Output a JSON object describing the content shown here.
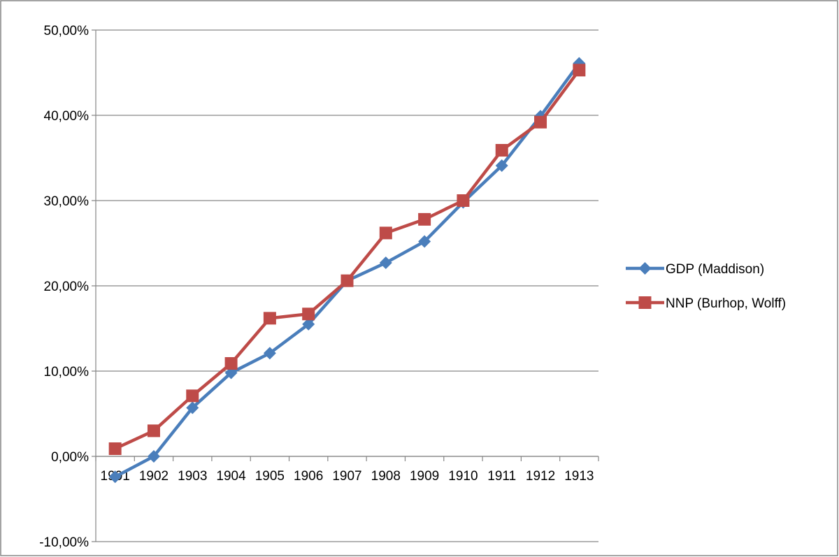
{
  "colors": {
    "gdp": "#4A7EBB",
    "nnp": "#BE4B48",
    "grid": "#868686",
    "background": "#FFFFFF"
  },
  "chart_data": {
    "type": "line",
    "title": "",
    "xlabel": "",
    "ylabel": "",
    "x": [
      "1901",
      "1902",
      "1903",
      "1904",
      "1905",
      "1906",
      "1907",
      "1908",
      "1909",
      "1910",
      "1911",
      "1912",
      "1913"
    ],
    "y_ticks": [
      "-10,00%",
      "0,00%",
      "10,00%",
      "20,00%",
      "30,00%",
      "40,00%",
      "50,00%"
    ],
    "y_tick_values": [
      -10,
      0,
      10,
      20,
      30,
      40,
      50
    ],
    "ylim": [
      -10,
      50
    ],
    "y_unit": "%",
    "grid": "horizontal major gridlines",
    "legend_position": "right",
    "series": [
      {
        "name": "GDP (Maddison)",
        "marker": "diamond",
        "color_key": "gdp",
        "values": [
          -2.4,
          0.0,
          5.7,
          9.8,
          12.1,
          15.5,
          20.6,
          22.7,
          25.2,
          29.8,
          34.1,
          39.9,
          46.1
        ]
      },
      {
        "name": "NNP (Burhop, Wolff)",
        "marker": "square",
        "color_key": "nnp",
        "values": [
          0.9,
          3.0,
          7.1,
          10.9,
          16.2,
          16.7,
          20.6,
          26.2,
          27.8,
          30.0,
          35.9,
          39.2,
          45.3
        ]
      }
    ]
  }
}
